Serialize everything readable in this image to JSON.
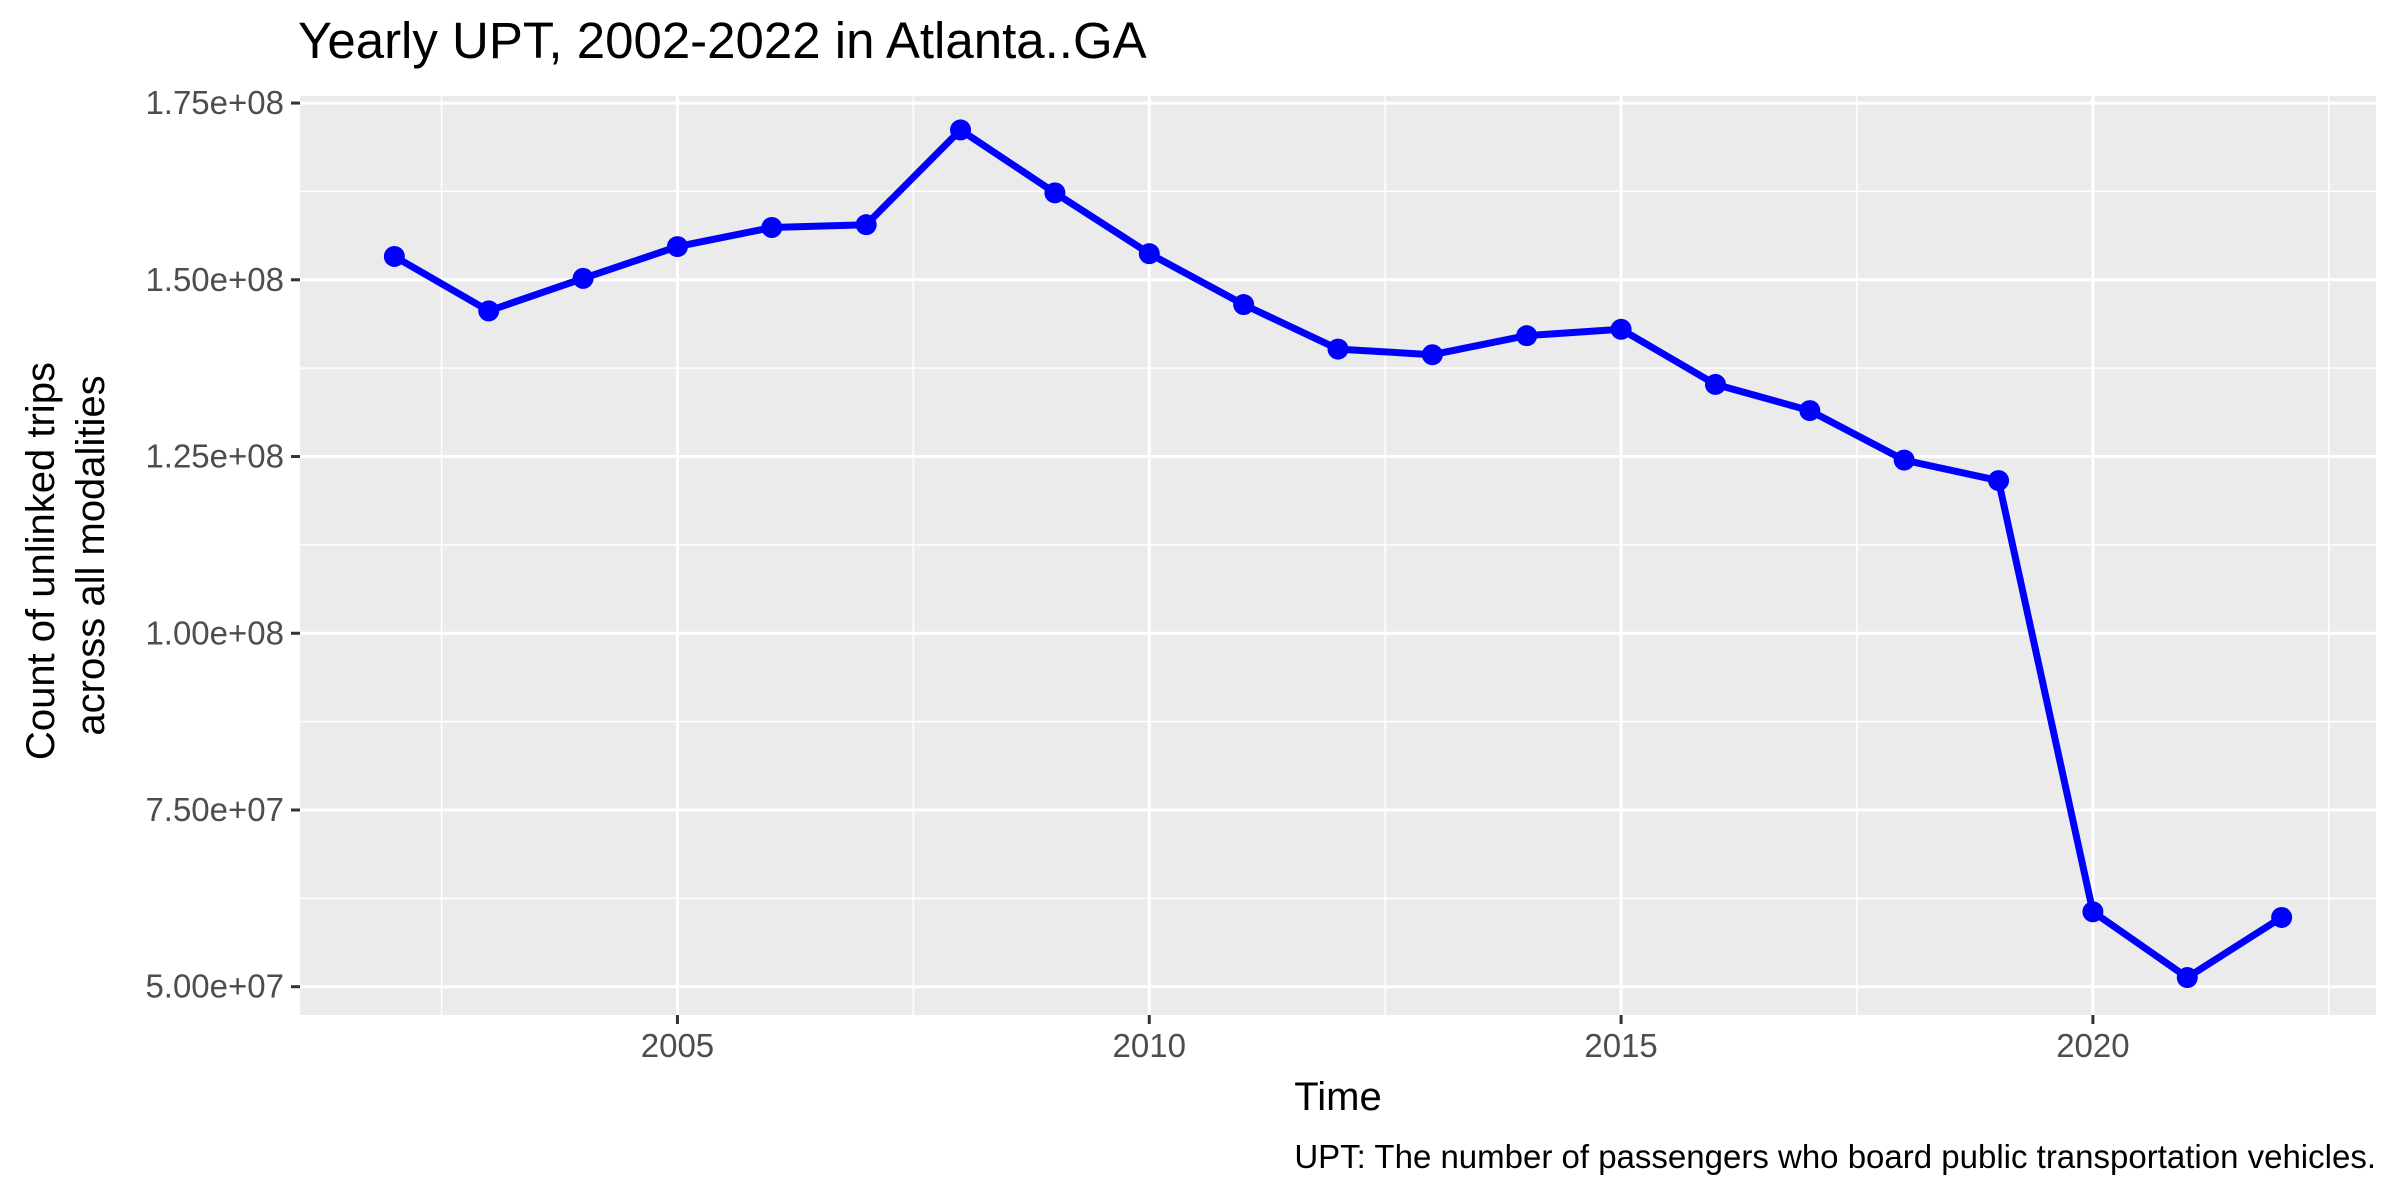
{
  "chart_data": {
    "type": "line",
    "title": "Yearly UPT, 2002-2022 in Atlanta..GA",
    "xlabel": "Time",
    "ylabel_lines": [
      "Count of unlinked trips",
      "across all modalities"
    ],
    "caption": "UPT: The number of passengers who board public transportation vehicles.",
    "xlim": [
      2001,
      2023
    ],
    "ylim": [
      46000000,
      176000000
    ],
    "x_ticks": [
      2005,
      2010,
      2015,
      2020
    ],
    "x_tick_labels": [
      "2005",
      "2010",
      "2015",
      "2020"
    ],
    "y_ticks": [
      50000000,
      75000000,
      100000000,
      125000000,
      150000000,
      175000000
    ],
    "y_tick_labels": [
      "5.00e+07",
      "7.50e+07",
      "1.00e+08",
      "1.25e+08",
      "1.50e+08",
      "1.75e+08"
    ],
    "grid": true,
    "panel_background": "#ebebeb",
    "series": [
      {
        "color": "#0000ff",
        "x": [
          2002,
          2003,
          2004,
          2005,
          2006,
          2007,
          2008,
          2009,
          2010,
          2011,
          2012,
          2013,
          2014,
          2015,
          2016,
          2017,
          2018,
          2019,
          2020,
          2021,
          2022
        ],
        "values": [
          153300000,
          145600000,
          150200000,
          154700000,
          157400000,
          157800000,
          171200000,
          162300000,
          153700000,
          146500000,
          140200000,
          139400000,
          142100000,
          143000000,
          135200000,
          131500000,
          124500000,
          121600000,
          60600000,
          51300000,
          59800000
        ]
      }
    ]
  }
}
